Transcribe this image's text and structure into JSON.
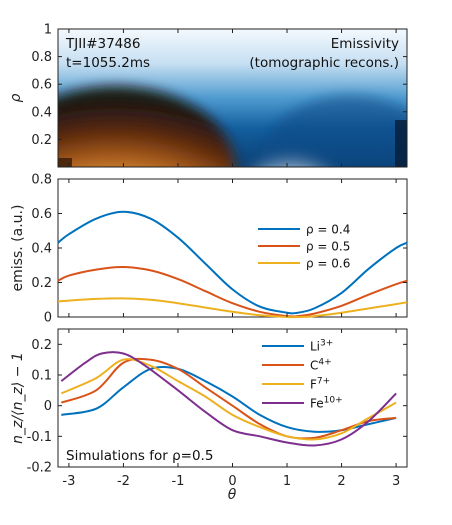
{
  "chart_data": [
    {
      "type": "heatmap",
      "title": "",
      "annotations": [
        "TJII#37486",
        "t=1055.2ms",
        "Emissivity",
        "(tomographic recons.)"
      ],
      "xlabel": "",
      "ylabel": "ρ",
      "xlim": [
        -3.2,
        3.2
      ],
      "ylim": [
        0,
        1
      ],
      "y_ticks": [
        "0.2",
        "0.4",
        "0.6",
        "0.8",
        "1"
      ],
      "colormap": "brown-white-blue",
      "colors": {
        "low": "#ffffff",
        "mid": "#1f78b4",
        "hot": "#a0500f"
      }
    },
    {
      "type": "line",
      "xlabel": "",
      "ylabel": "emiss. (a.u.)",
      "xlim": [
        -3.2,
        3.2
      ],
      "ylim": [
        0,
        0.8
      ],
      "y_ticks": [
        "0",
        "0.2",
        "0.4",
        "0.6",
        "0.8"
      ],
      "grid": false,
      "legend": "right",
      "x": [
        -3.2,
        -3.0,
        -2.5,
        -2.0,
        -1.5,
        -1.0,
        -0.5,
        0.0,
        0.5,
        1.0,
        1.2,
        1.5,
        2.0,
        2.5,
        3.0,
        3.2
      ],
      "series": [
        {
          "name": "ρ = 0.4",
          "color": "#0072bd",
          "values": [
            0.43,
            0.48,
            0.57,
            0.61,
            0.57,
            0.46,
            0.31,
            0.16,
            0.06,
            0.025,
            0.025,
            0.05,
            0.14,
            0.28,
            0.4,
            0.43
          ]
        },
        {
          "name": "ρ = 0.5",
          "color": "#d95319",
          "values": [
            0.21,
            0.24,
            0.275,
            0.29,
            0.27,
            0.22,
            0.15,
            0.08,
            0.03,
            0.005,
            0.005,
            0.02,
            0.065,
            0.13,
            0.19,
            0.21
          ]
        },
        {
          "name": "ρ = 0.6",
          "color": "#edb120",
          "values": [
            0.09,
            0.095,
            0.105,
            0.108,
            0.1,
            0.08,
            0.055,
            0.03,
            0.01,
            0.0,
            0.0,
            0.005,
            0.025,
            0.05,
            0.075,
            0.085
          ]
        }
      ]
    },
    {
      "type": "line",
      "xlabel": "θ",
      "ylabel": "n_z/⟨n_z⟩ − 1",
      "xlim": [
        -3.2,
        3.2
      ],
      "ylim": [
        -0.2,
        0.25
      ],
      "x_ticks": [
        "-3",
        "-2",
        "-1",
        "0",
        "1",
        "2",
        "3"
      ],
      "y_ticks": [
        "-0.2",
        "-0.1",
        "0",
        "0.1",
        "0.2"
      ],
      "grid": false,
      "legend": "top-right",
      "annotation": "Simulations for ρ=0.5",
      "series": [
        {
          "name": "Li",
          "charge": "3+",
          "color": "#0072bd",
          "x": [
            -3.14,
            -2.5,
            -2.0,
            -1.5,
            -1.0,
            -0.5,
            0.0,
            0.5,
            1.0,
            1.5,
            2.0,
            2.5,
            3.0
          ],
          "values": [
            -0.03,
            -0.01,
            0.06,
            0.12,
            0.12,
            0.08,
            0.03,
            -0.03,
            -0.07,
            -0.085,
            -0.08,
            -0.06,
            -0.04
          ]
        },
        {
          "name": "C",
          "charge": "4+",
          "color": "#d95319",
          "x": [
            -3.14,
            -2.5,
            -2.0,
            -1.5,
            -1.0,
            -0.5,
            0.0,
            0.5,
            1.0,
            1.5,
            2.0,
            2.5,
            3.0
          ],
          "values": [
            0.01,
            0.05,
            0.14,
            0.15,
            0.12,
            0.06,
            0.0,
            -0.06,
            -0.1,
            -0.105,
            -0.08,
            -0.05,
            -0.04
          ]
        },
        {
          "name": "F",
          "charge": "7+",
          "color": "#edb120",
          "x": [
            -3.14,
            -2.5,
            -2.0,
            -1.5,
            -1.0,
            -0.5,
            0.0,
            0.5,
            1.0,
            1.5,
            2.0,
            2.5,
            3.0
          ],
          "values": [
            0.04,
            0.09,
            0.15,
            0.13,
            0.08,
            0.03,
            -0.03,
            -0.07,
            -0.1,
            -0.11,
            -0.09,
            -0.04,
            0.01
          ]
        },
        {
          "name": "Fe",
          "charge": "10+",
          "color": "#7e2f8e",
          "x": [
            -3.14,
            -2.7,
            -2.4,
            -2.0,
            -1.6,
            -1.0,
            -0.5,
            0.0,
            0.5,
            1.0,
            1.5,
            2.0,
            2.5,
            3.0
          ],
          "values": [
            0.08,
            0.14,
            0.17,
            0.17,
            0.13,
            0.05,
            -0.02,
            -0.08,
            -0.1,
            -0.12,
            -0.13,
            -0.11,
            -0.05,
            0.04
          ]
        }
      ]
    }
  ]
}
